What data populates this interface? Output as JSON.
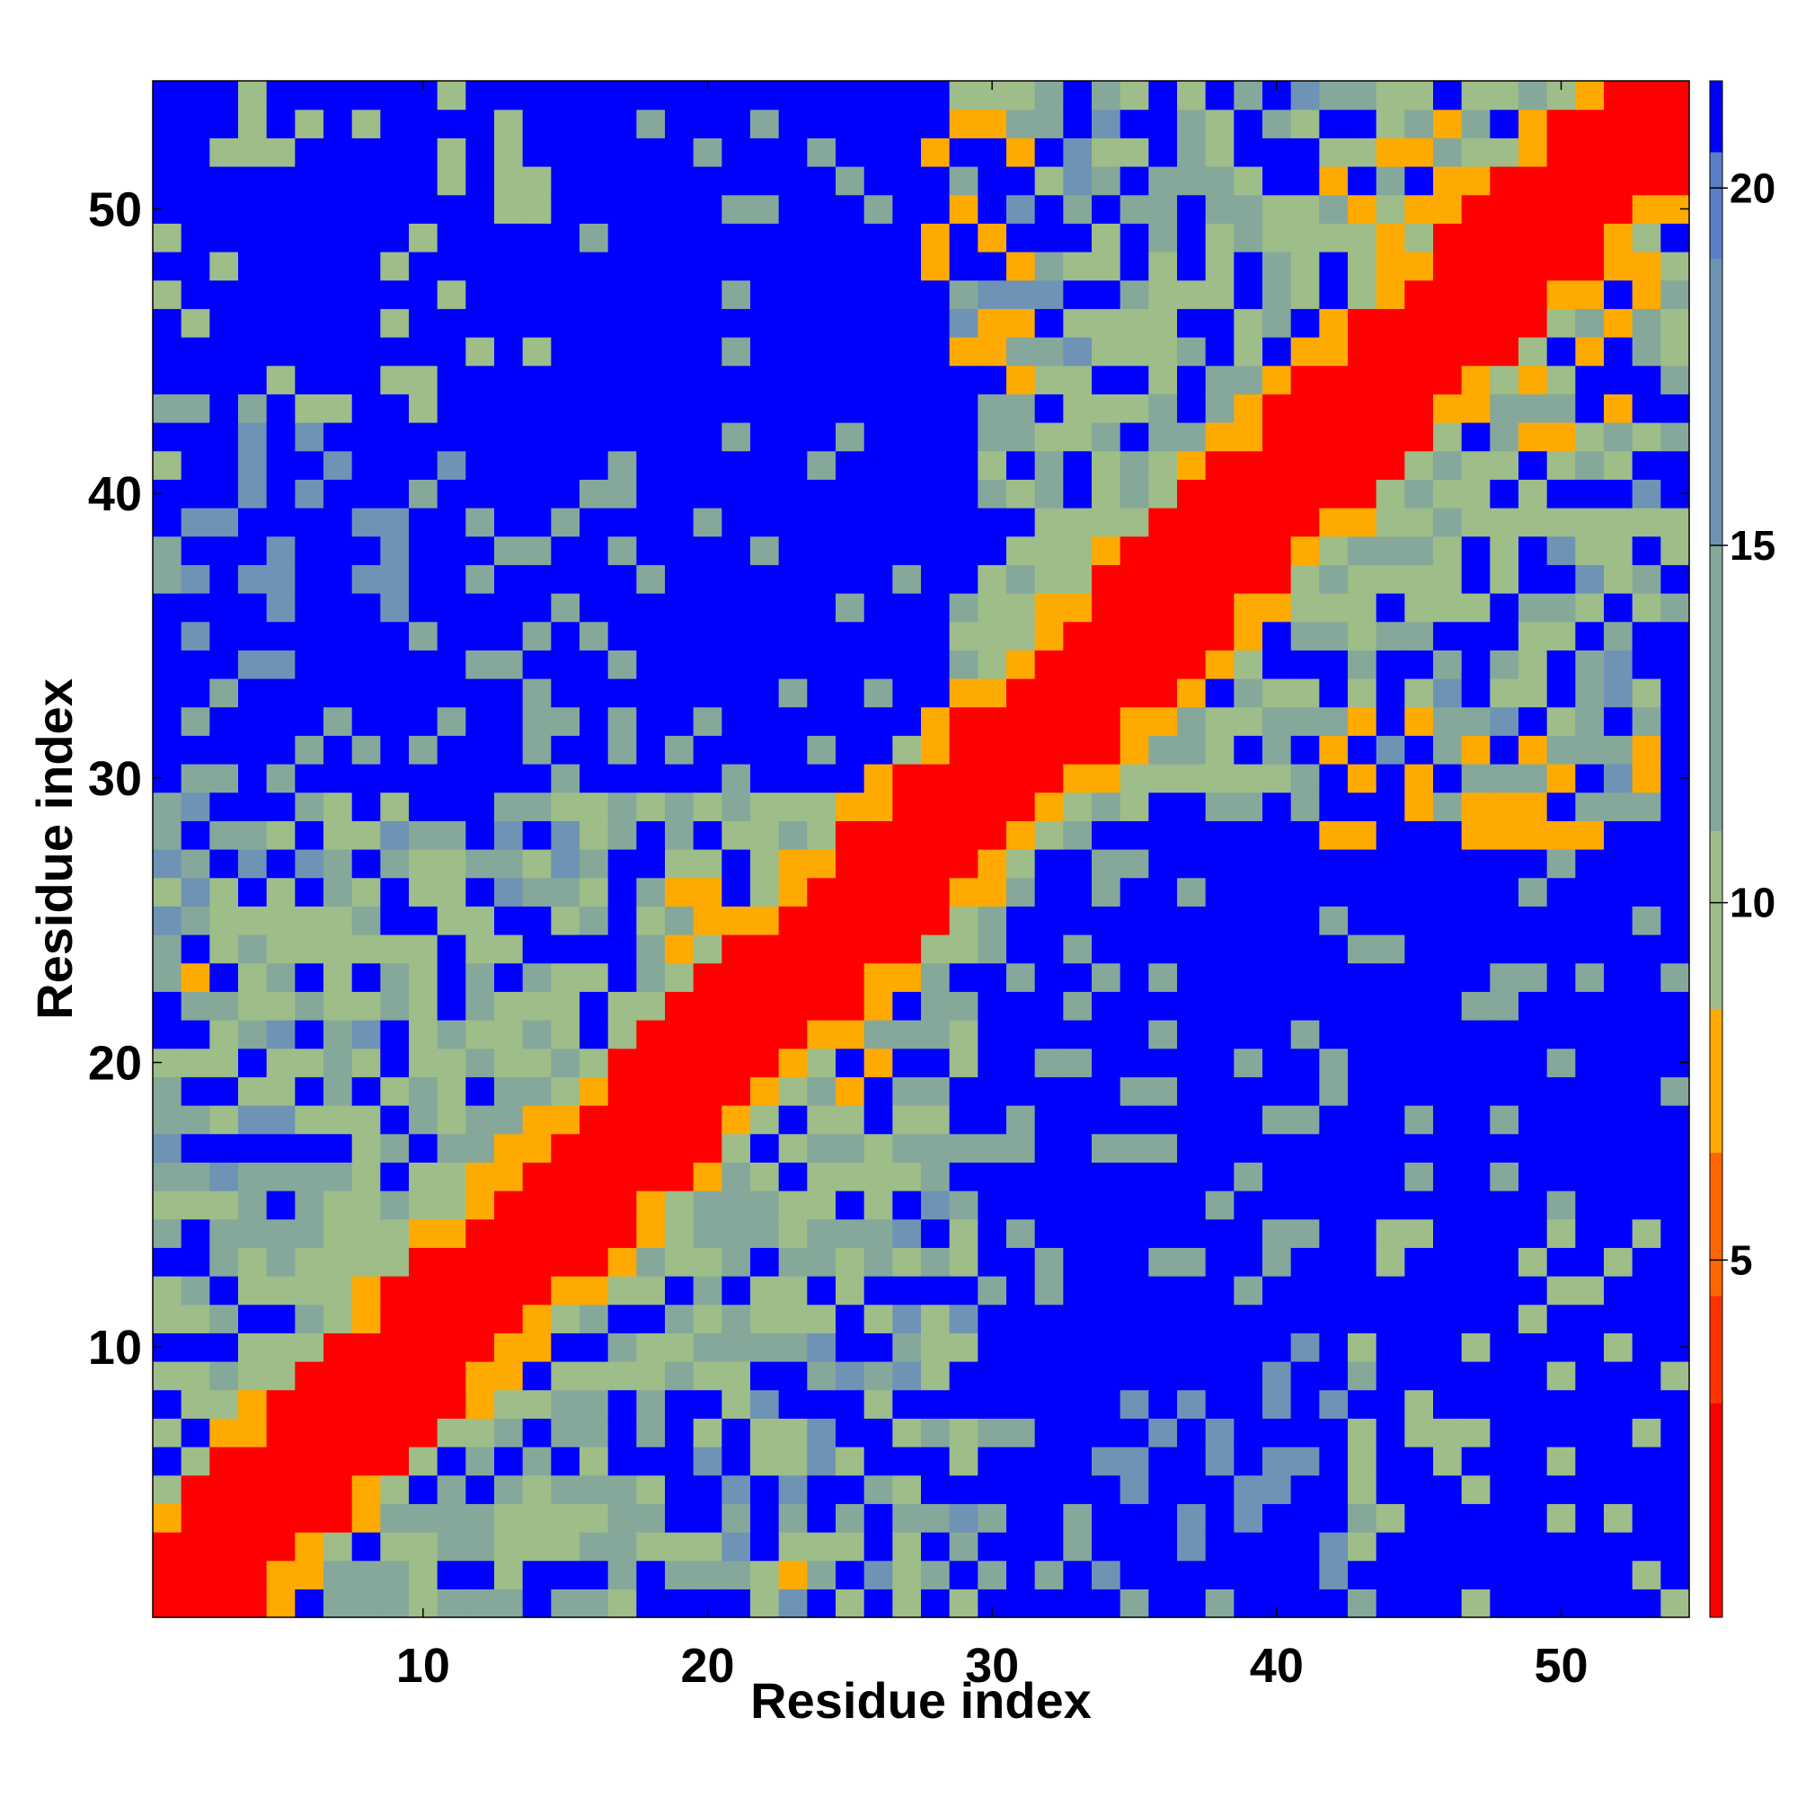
{
  "chart_data": {
    "type": "heatmap",
    "title": "",
    "xlabel": "Residue index",
    "ylabel": "Residue index",
    "n": 54,
    "xlim": [
      0.5,
      54.5
    ],
    "ylim": [
      0.5,
      54.5
    ],
    "x_ticks": [
      10,
      20,
      30,
      40,
      50
    ],
    "y_ticks": [
      10,
      20,
      30,
      40,
      50
    ],
    "colorbar": {
      "ticks": [
        5,
        10,
        15,
        20
      ],
      "range": [
        0,
        21.5
      ],
      "placement": "right",
      "bands": [
        {
          "max": 3,
          "color": "#ff0000"
        },
        {
          "max": 4.5,
          "color": "#ff3300"
        },
        {
          "max": 6.5,
          "color": "#ff6600"
        },
        {
          "max": 8.5,
          "color": "#ffaa00"
        },
        {
          "max": 11,
          "color": "#9ebd88"
        },
        {
          "max": 15,
          "color": "#85a89a"
        },
        {
          "max": 19,
          "color": "#6f93b4"
        },
        {
          "max": 20.5,
          "color": "#5a7ec8"
        },
        {
          "max": 99,
          "color": "#0000ff"
        }
      ]
    },
    "colors": {
      "contact": "#ff0000",
      "near": "#ffaa00",
      "far": "#0000ff",
      "mid": "#9ebd88",
      "gray": "#85a89a",
      "steel": "#6f93b4"
    },
    "grid": false
  }
}
